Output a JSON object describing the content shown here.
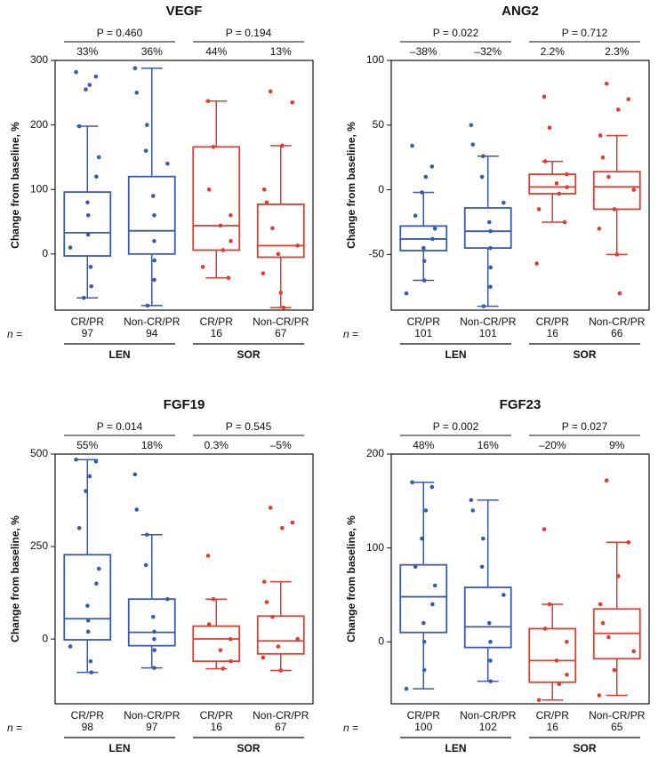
{
  "chart_data": [
    {
      "type": "box",
      "title": "VEGF",
      "ylabel": "Change from baseline, %",
      "n_label": "n =",
      "ylim": [
        -87,
        300
      ],
      "yticks": [
        0,
        100,
        200,
        300
      ],
      "groups": [
        {
          "name": "LEN",
          "color": "#3b5ba8",
          "p_label": "P = 0.460",
          "boxes": [
            {
              "category": "CR/PR",
              "n": 97,
              "whisker_low": -68,
              "q1": -3,
              "median": 33,
              "median_label": "33%",
              "q3": 96,
              "whisker_high": 198,
              "points": [
                282,
                275,
                262,
                255,
                198,
                150,
                120,
                80,
                60,
                30,
                10,
                -20,
                -50,
                -68
              ]
            },
            {
              "category": "Non-CR/PR",
              "n": 94,
              "whisker_low": -80,
              "q1": 0,
              "median": 36,
              "median_label": "36%",
              "q3": 120,
              "whisker_high": 288,
              "points": [
                288,
                250,
                200,
                160,
                140,
                90,
                60,
                20,
                -10,
                -40,
                -80
              ]
            }
          ]
        },
        {
          "name": "SOR",
          "color": "#e03c31",
          "p_label": "P = 0.194",
          "boxes": [
            {
              "category": "CR/PR",
              "n": 16,
              "whisker_low": -37,
              "q1": 6,
              "median": 44,
              "median_label": "44%",
              "q3": 166,
              "whisker_high": 237,
              "points": [
                237,
                166,
                100,
                60,
                44,
                20,
                6,
                -20,
                -37
              ]
            },
            {
              "category": "Non-CR/PR",
              "n": 67,
              "whisker_low": -83,
              "q1": -5,
              "median": 13,
              "median_label": "13%",
              "q3": 77,
              "whisker_high": 168,
              "points": [
                252,
                235,
                168,
                100,
                80,
                40,
                13,
                0,
                -30,
                -60,
                -83
              ]
            }
          ]
        }
      ]
    },
    {
      "type": "box",
      "title": "ANG2",
      "ylabel": "Change from baseline, %",
      "n_label": "n =",
      "ylim": [
        -93,
        100
      ],
      "yticks": [
        -50,
        0,
        50,
        100
      ],
      "groups": [
        {
          "name": "LEN",
          "color": "#3b5ba8",
          "p_label": "P = 0.022",
          "boxes": [
            {
              "category": "CR/PR",
              "n": 101,
              "whisker_low": -70,
              "q1": -47,
              "median": -38,
              "median_label": "–38%",
              "q3": -28,
              "whisker_high": -2,
              "points": [
                34,
                18,
                10,
                -2,
                -20,
                -30,
                -38,
                -45,
                -55,
                -70,
                -80
              ]
            },
            {
              "category": "Non-CR/PR",
              "n": 101,
              "whisker_low": -90,
              "q1": -45,
              "median": -32,
              "median_label": "–32%",
              "q3": -14,
              "whisker_high": 26,
              "points": [
                50,
                35,
                26,
                10,
                -10,
                -25,
                -32,
                -45,
                -60,
                -75,
                -90
              ]
            }
          ]
        },
        {
          "name": "SOR",
          "color": "#e03c31",
          "p_label": "P = 0.712",
          "boxes": [
            {
              "category": "CR/PR",
              "n": 16,
              "whisker_low": -25,
              "q1": -3,
              "median": 2.2,
              "median_label": "2.2%",
              "q3": 12,
              "whisker_high": 22,
              "points": [
                72,
                48,
                22,
                12,
                5,
                2,
                -3,
                -15,
                -25,
                -57
              ]
            },
            {
              "category": "Non-CR/PR",
              "n": 66,
              "whisker_low": -50,
              "q1": -15,
              "median": 2.3,
              "median_label": "2.3%",
              "q3": 14,
              "whisker_high": 42,
              "points": [
                82,
                70,
                62,
                42,
                25,
                10,
                0,
                -15,
                -30,
                -50,
                -80
              ]
            }
          ]
        }
      ]
    },
    {
      "type": "box",
      "title": "FGF19",
      "ylabel": "Change from baseline, %",
      "n_label": "n =",
      "ylim": [
        -175,
        500
      ],
      "yticks": [
        0,
        250,
        500
      ],
      "groups": [
        {
          "name": "LEN",
          "color": "#3b5ba8",
          "p_label": "P = 0.014",
          "boxes": [
            {
              "category": "CR/PR",
              "n": 98,
              "whisker_low": -90,
              "q1": -2,
              "median": 55,
              "median_label": "55%",
              "q3": 228,
              "whisker_high": 485,
              "points": [
                485,
                480,
                440,
                400,
                300,
                190,
                150,
                90,
                50,
                20,
                -20,
                -60,
                -90
              ]
            },
            {
              "category": "Non-CR/PR",
              "n": 97,
              "whisker_low": -78,
              "q1": -18,
              "median": 18,
              "median_label": "18%",
              "q3": 108,
              "whisker_high": 282,
              "points": [
                445,
                350,
                282,
                200,
                108,
                60,
                20,
                0,
                -30,
                -78
              ]
            }
          ]
        },
        {
          "name": "SOR",
          "color": "#e03c31",
          "p_label": "P = 0.545",
          "boxes": [
            {
              "category": "CR/PR",
              "n": 16,
              "whisker_low": -80,
              "q1": -60,
              "median": 0.3,
              "median_label": "0.3%",
              "q3": 35,
              "whisker_high": 108,
              "points": [
                225,
                108,
                40,
                0,
                -30,
                -60,
                -80
              ]
            },
            {
              "category": "Non-CR/PR",
              "n": 67,
              "whisker_low": -85,
              "q1": -40,
              "median": -5,
              "median_label": "–5%",
              "q3": 62,
              "whisker_high": 155,
              "points": [
                355,
                315,
                300,
                155,
                100,
                60,
                0,
                -20,
                -50,
                -85
              ]
            }
          ]
        }
      ]
    },
    {
      "type": "box",
      "title": "FGF23",
      "ylabel": "Change from baseline, %",
      "n_label": "n =",
      "ylim": [
        -66,
        200
      ],
      "yticks": [
        0,
        100,
        200
      ],
      "groups": [
        {
          "name": "LEN",
          "color": "#3b5ba8",
          "p_label": "P = 0.002",
          "boxes": [
            {
              "category": "CR/PR",
              "n": 100,
              "whisker_low": -50,
              "q1": 10,
              "median": 48,
              "median_label": "48%",
              "q3": 82,
              "whisker_high": 170,
              "points": [
                170,
                165,
                140,
                110,
                80,
                60,
                40,
                20,
                0,
                -30,
                -50
              ]
            },
            {
              "category": "Non-CR/PR",
              "n": 102,
              "whisker_low": -42,
              "q1": -6,
              "median": 16,
              "median_label": "16%",
              "q3": 58,
              "whisker_high": 151,
              "points": [
                151,
                140,
                110,
                80,
                50,
                20,
                0,
                -20,
                -42
              ]
            }
          ]
        },
        {
          "name": "SOR",
          "color": "#e03c31",
          "p_label": "P = 0.027",
          "boxes": [
            {
              "category": "CR/PR",
              "n": 16,
              "whisker_low": -62,
              "q1": -43,
              "median": -20,
              "median_label": "–20%",
              "q3": 14,
              "whisker_high": 40,
              "points": [
                120,
                40,
                14,
                0,
                -20,
                -35,
                -45,
                -62
              ]
            },
            {
              "category": "Non-CR/PR",
              "n": 65,
              "whisker_low": -57,
              "q1": -18,
              "median": 9,
              "median_label": "9%",
              "q3": 35,
              "whisker_high": 106,
              "points": [
                172,
                106,
                70,
                40,
                20,
                5,
                -10,
                -30,
                -57
              ]
            }
          ]
        }
      ]
    }
  ]
}
